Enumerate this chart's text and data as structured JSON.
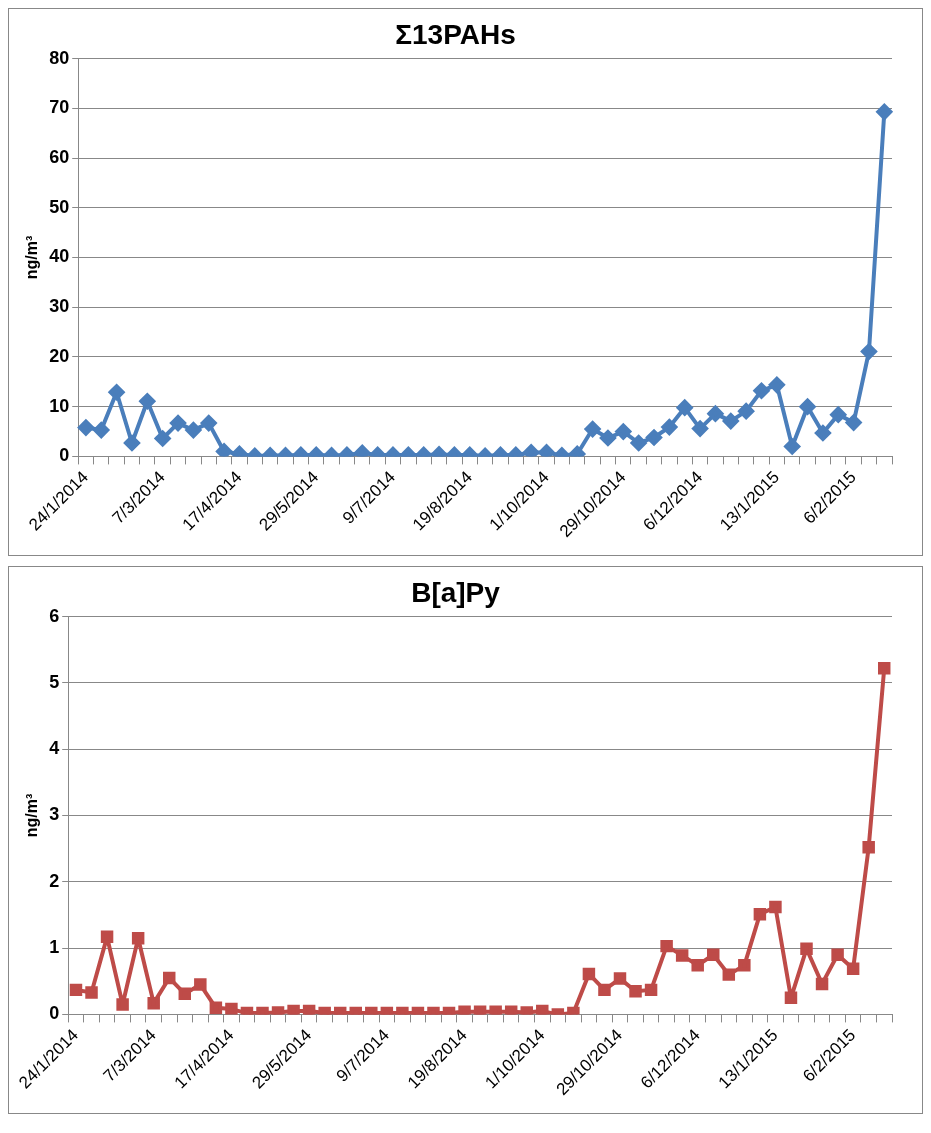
{
  "chart_data": [
    {
      "type": "line",
      "title": "Σ13PAHs",
      "ylabel": "ng/m³",
      "categories": [
        "24/1/2014",
        null,
        null,
        null,
        null,
        "7/3/2014",
        null,
        null,
        null,
        null,
        "17/4/2014",
        null,
        null,
        null,
        null,
        "29/5/2014",
        null,
        null,
        null,
        null,
        "9/7/2014",
        null,
        null,
        null,
        null,
        "19/8/2014",
        null,
        null,
        null,
        null,
        "1/10/2014",
        null,
        null,
        null,
        null,
        "29/10/2014",
        null,
        null,
        null,
        null,
        "6/12/2014",
        null,
        null,
        null,
        null,
        "13/1/2015",
        null,
        null,
        null,
        null,
        "6/2/2015",
        null,
        null
      ],
      "series": [
        {
          "color": "#4a7ebb",
          "values": [
            5.8,
            5.3,
            12.9,
            2.7,
            11.1,
            3.6,
            6.7,
            5.3,
            6.7,
            1.0,
            0.5,
            0.1,
            0.2,
            0.2,
            0.3,
            0.3,
            0.2,
            0.3,
            0.7,
            0.3,
            0.3,
            0.3,
            0.3,
            0.4,
            0.3,
            0.3,
            0.1,
            0.3,
            0.3,
            0.8,
            0.8,
            0.2,
            0.5,
            5.5,
            3.7,
            5.0,
            2.7,
            3.8,
            5.9,
            9.8,
            5.6,
            8.6,
            7.1,
            9.1,
            13.2,
            14.4,
            2.0,
            10,
            4.7,
            8.4,
            6.8,
            21.1,
            69.3
          ]
        }
      ],
      "ylim": [
        0,
        80
      ],
      "yticks": [
        0,
        10,
        20,
        30,
        40,
        50,
        60,
        70,
        80
      ],
      "grid": "y",
      "legend": false,
      "marker": "diamond",
      "line_style": "solid"
    },
    {
      "type": "line",
      "title": "B[a]Py",
      "ylabel": "ng/m³",
      "categories": [
        "24/1/2014",
        null,
        null,
        null,
        null,
        "7/3/2014",
        null,
        null,
        null,
        null,
        "17/4/2014",
        null,
        null,
        null,
        null,
        "29/5/2014",
        null,
        null,
        null,
        null,
        "9/7/2014",
        null,
        null,
        null,
        null,
        "19/8/2014",
        null,
        null,
        null,
        null,
        "1/10/2014",
        null,
        null,
        null,
        null,
        "29/10/2014",
        null,
        null,
        null,
        null,
        "6/12/2014",
        null,
        null,
        null,
        null,
        "13/1/2015",
        null,
        null,
        null,
        null,
        "6/2/2015",
        null,
        null
      ],
      "series": [
        {
          "color": "#be4b48",
          "values": [
            0.37,
            0.33,
            1.17,
            0.15,
            1.15,
            0.17,
            0.55,
            0.31,
            0.45,
            0.1,
            0.08,
            0.02,
            0.02,
            0.03,
            0.05,
            0.05,
            0.02,
            0.02,
            0.02,
            0.02,
            0.02,
            0.02,
            0.02,
            0.02,
            0.02,
            0.04,
            0.04,
            0.04,
            0.04,
            0.03,
            0.05,
            0.0,
            0.02,
            0.61,
            0.37,
            0.54,
            0.35,
            0.37,
            1.03,
            0.89,
            0.74,
            0.9,
            0.6,
            0.74,
            1.51,
            1.62,
            0.25,
            0.99,
            0.46,
            0.9,
            0.69,
            2.52,
            5.22
          ]
        }
      ],
      "ylim": [
        0,
        6
      ],
      "yticks": [
        0,
        1,
        2,
        3,
        4,
        5,
        6
      ],
      "grid": "y",
      "legend": false,
      "marker": "square",
      "line_style": "solid"
    }
  ]
}
